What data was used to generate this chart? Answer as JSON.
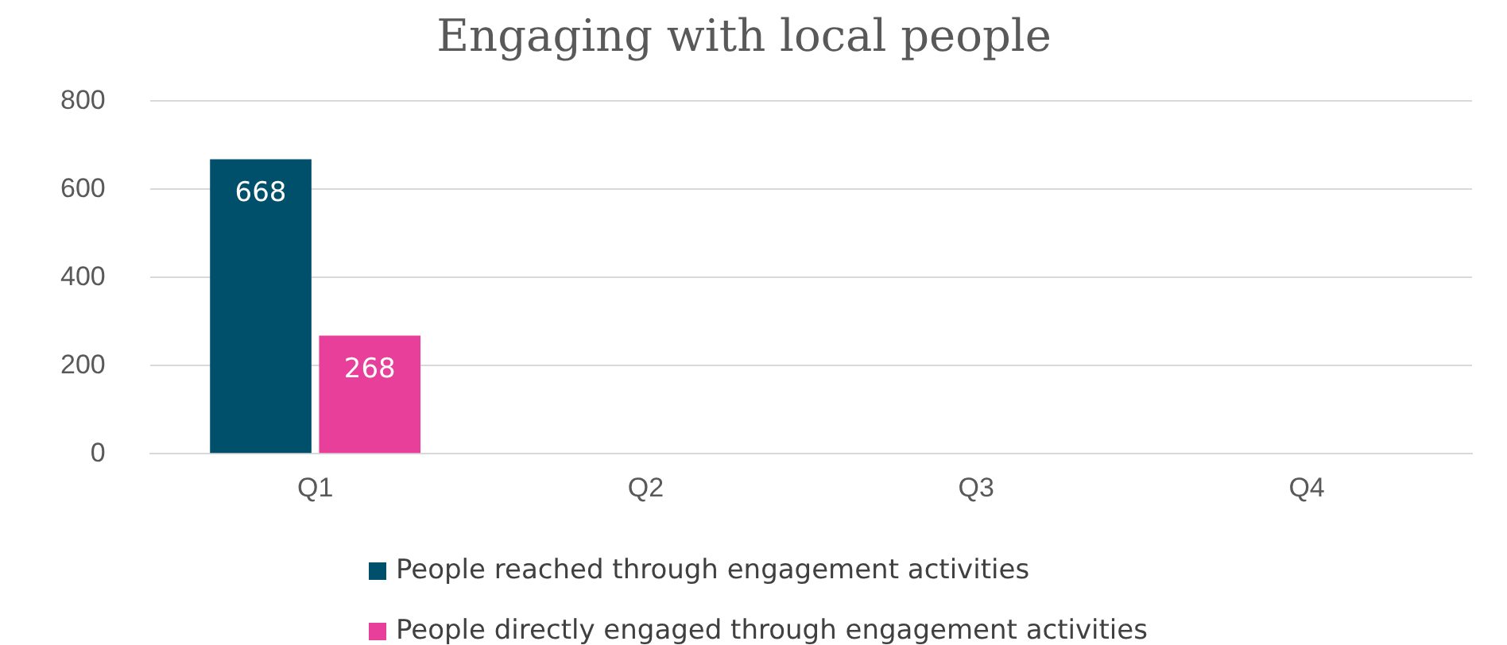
{
  "chart_data": {
    "type": "bar",
    "title": "Engaging with local people",
    "categories": [
      "Q1",
      "Q2",
      "Q3",
      "Q4"
    ],
    "series": [
      {
        "name": "People reached through engagement activities",
        "color": "#004f6b",
        "values": [
          668,
          null,
          null,
          null
        ]
      },
      {
        "name": "People directly engaged through engagement activities",
        "color": "#e8409a",
        "values": [
          268,
          null,
          null,
          null
        ]
      }
    ],
    "ylim": [
      0,
      800
    ],
    "yticks": [
      0,
      200,
      400,
      600,
      800
    ],
    "grid": "y",
    "legend": "bottom",
    "data_labels": true
  }
}
